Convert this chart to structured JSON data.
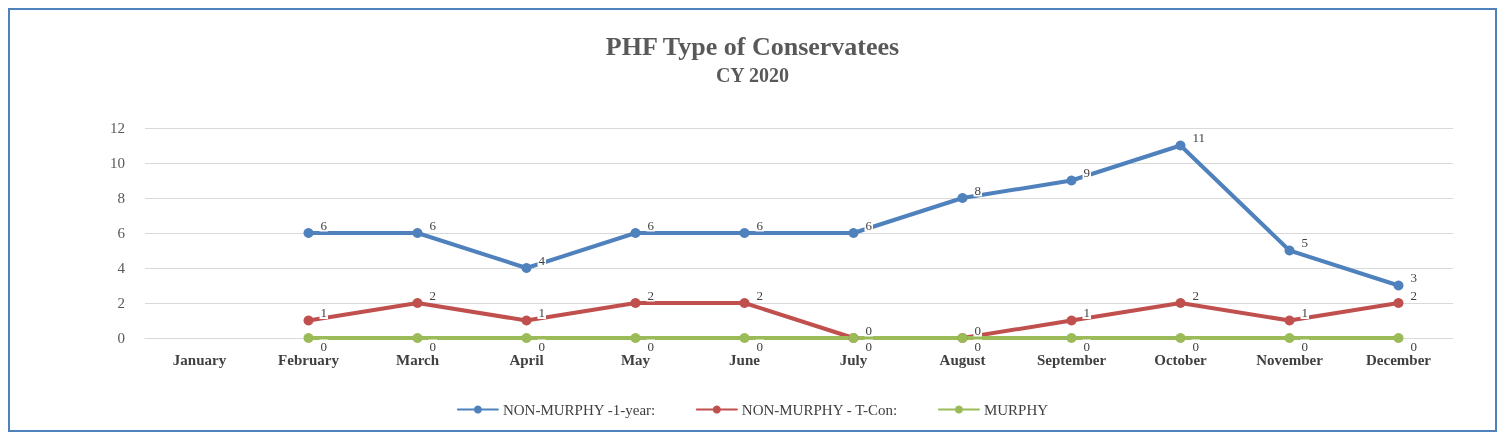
{
  "chart_data": {
    "type": "line",
    "title": "PHF Type of Conservatees",
    "subtitle": "CY 2020",
    "categories": [
      "January",
      "February",
      "March",
      "April",
      "May",
      "June",
      "July",
      "August",
      "September",
      "October",
      "November",
      "December"
    ],
    "series": [
      {
        "name": "NON-MURPHY -1-year:",
        "color": "#4f81bd",
        "values": [
          null,
          6,
          6,
          4,
          6,
          6,
          6,
          8,
          9,
          11,
          5,
          3
        ]
      },
      {
        "name": "NON-MURPHY - T-Con:",
        "color": "#c0504d",
        "values": [
          null,
          1,
          2,
          1,
          2,
          2,
          0,
          0,
          1,
          2,
          1,
          2
        ]
      },
      {
        "name": "MURPHY",
        "color": "#9bbb59",
        "values": [
          null,
          0,
          0,
          0,
          0,
          0,
          0,
          0,
          0,
          0,
          0,
          0
        ]
      }
    ],
    "ylim": [
      0,
      12
    ],
    "yticks": [
      0,
      2,
      4,
      6,
      8,
      10,
      12
    ],
    "grid": "y",
    "legend": "bottom",
    "marker": "circle",
    "line_style": "solid",
    "data_labels": true
  }
}
